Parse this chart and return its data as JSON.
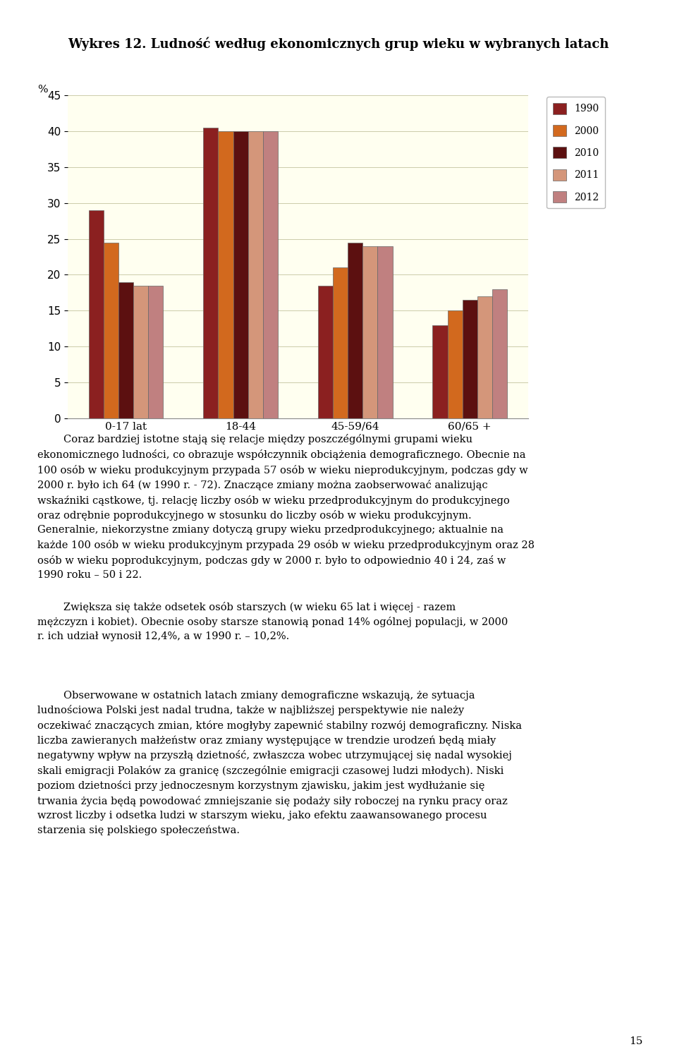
{
  "title": "Wykres 12. Ludność według ekonomicznych grup wieku w wybranych latach",
  "ylabel": "%",
  "categories": [
    "0-17 lat",
    "18-44",
    "45-59/64",
    "60/65 +"
  ],
  "series": {
    "1990": [
      29.0,
      40.5,
      18.5,
      13.0
    ],
    "2000": [
      24.5,
      40.0,
      21.0,
      15.0
    ],
    "2010": [
      19.0,
      40.0,
      24.5,
      16.5
    ],
    "2011": [
      18.5,
      40.0,
      24.0,
      17.0
    ],
    "2012": [
      18.5,
      40.0,
      24.0,
      18.0
    ]
  },
  "series_order": [
    "1990",
    "2000",
    "2010",
    "2011",
    "2012"
  ],
  "colors": {
    "1990": "#8B2020",
    "2000": "#D2691E",
    "2010": "#5C1010",
    "2011": "#D4967A",
    "2012": "#C08080"
  },
  "ylim": [
    0,
    45
  ],
  "yticks": [
    0,
    5,
    10,
    15,
    20,
    25,
    30,
    35,
    40,
    45
  ],
  "plot_bg_color": "#FFFFF0",
  "grid_color": "#CCCCAA",
  "title_fontsize": 13,
  "legend_fontsize": 10,
  "tick_fontsize": 11,
  "body1": "        Coraz bardziej istotne stają się relacje między poszczégólnymi grupami wieku ekonomicznego ludności, co obrazuje współczynnik obciążenia demograficznego. Obecnie na 100 osób w wieku produkcyjnym przypada 57 osób w wieku nieprodukcyjnym, podczas gdy w 2000 r. było ich 64 (w 1990 r. - 72). Znaczące zmiany można zaobserwować analizując wskaźniki cąstkowe, tj. relację liczby osób w wieku przedprodukcyjnym do produkcyjnego oraz odrębnie poprodukcyjnego w stosunku do liczby osób w wieku produkcyjnym. Generalnie, niekorzystne zmiany dotyczą grupy wieku przedprodukcyjnego; aktualnie na każde 100 osób w wieku produkcyjnym przypada 29 osób w wieku przedprodukcyjnym oraz 28 osób w wieku poprodukcyjnym, podczas gdy w 2000 r. było to odpowiednio 40 i 24, zaś w 1990 roku – 50 i 22.",
  "body2": "        Zwiększa się także odsetek osób starszych (w wieku 65 lat i więcej - razem mężczyzn i kobiet). Obecnie osoby starsze stanowią ponad 14% ogólnej populacji, w 2000 r. ich udział wynosił 12,4%, a w 1990 r. – 10,2%.",
  "body3": "        Obserwowane w ostatnich latach zmiany demograficzne wskazują, że sytuacja ludnościowa Polski jest nadal trudna, także w najbliższej perspektywie nie należy oczekiwać znaczących zmian, które mogłyby zapewnić stabilny rozwój demograficzny. Niska liczba zawieranych małżeństw oraz zmiany występujące w trendzie urodzeń będą miały negatywny wpływ na przyszłą dzietność, zwłaszcza wobec utrzymującej się nadal wysokiej skali emigracji Polaków za granicę (szczególnie emigracji czasowej ludzi młodych). Niski poziom dzietności przy jednoczesnym korzystnym zjawisku, jakim jest wydłużanie się trwania życia będą powodować zmniejszanie się podaży siły roboczej na rynku pracy oraz wzrost liczby i odsetka ludzi w starszym wieku, jako efektu zaawansowanego procesu starzenia się polskiego społeczeństwa.",
  "page_number": "15"
}
